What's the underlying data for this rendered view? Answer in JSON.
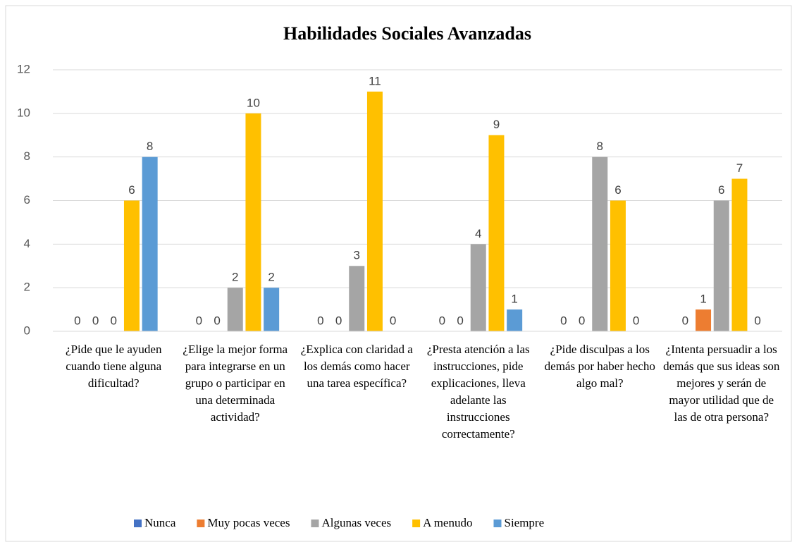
{
  "chart_data": {
    "type": "bar",
    "title": "Habilidades Sociales Avanzadas",
    "categories": [
      "¿Pide que le ayuden cuando tiene alguna dificultad?",
      "¿Elige la mejor forma para integrarse en un grupo o participar en una determinada actividad?",
      "¿Explica con claridad a los demás como hacer una tarea específica?",
      "¿Presta atención a las instrucciones, pide explicaciones, lleva adelante las instrucciones correctamente?",
      "¿Pide disculpas a los demás por haber hecho algo mal?",
      "¿Intenta persuadir a los demás que sus ideas son mejores y serán de mayor utilidad que de las de otra persona?"
    ],
    "series": [
      {
        "name": "Nunca",
        "color": "#4472c4",
        "values": [
          0,
          0,
          0,
          0,
          0,
          0
        ]
      },
      {
        "name": "Muy pocas veces",
        "color": "#ed7d31",
        "values": [
          0,
          0,
          0,
          0,
          0,
          1
        ]
      },
      {
        "name": "Algunas veces",
        "color": "#a5a5a5",
        "values": [
          0,
          2,
          3,
          4,
          8,
          6
        ]
      },
      {
        "name": "A menudo",
        "color": "#ffc000",
        "values": [
          6,
          10,
          11,
          9,
          6,
          7
        ]
      },
      {
        "name": "Siempre",
        "color": "#5b9bd5",
        "values": [
          8,
          2,
          0,
          1,
          0,
          0
        ]
      }
    ],
    "ylim": [
      0,
      12
    ],
    "yticks": [
      0,
      2,
      4,
      6,
      8,
      10,
      12
    ],
    "grid": true,
    "legend": "bottom"
  }
}
